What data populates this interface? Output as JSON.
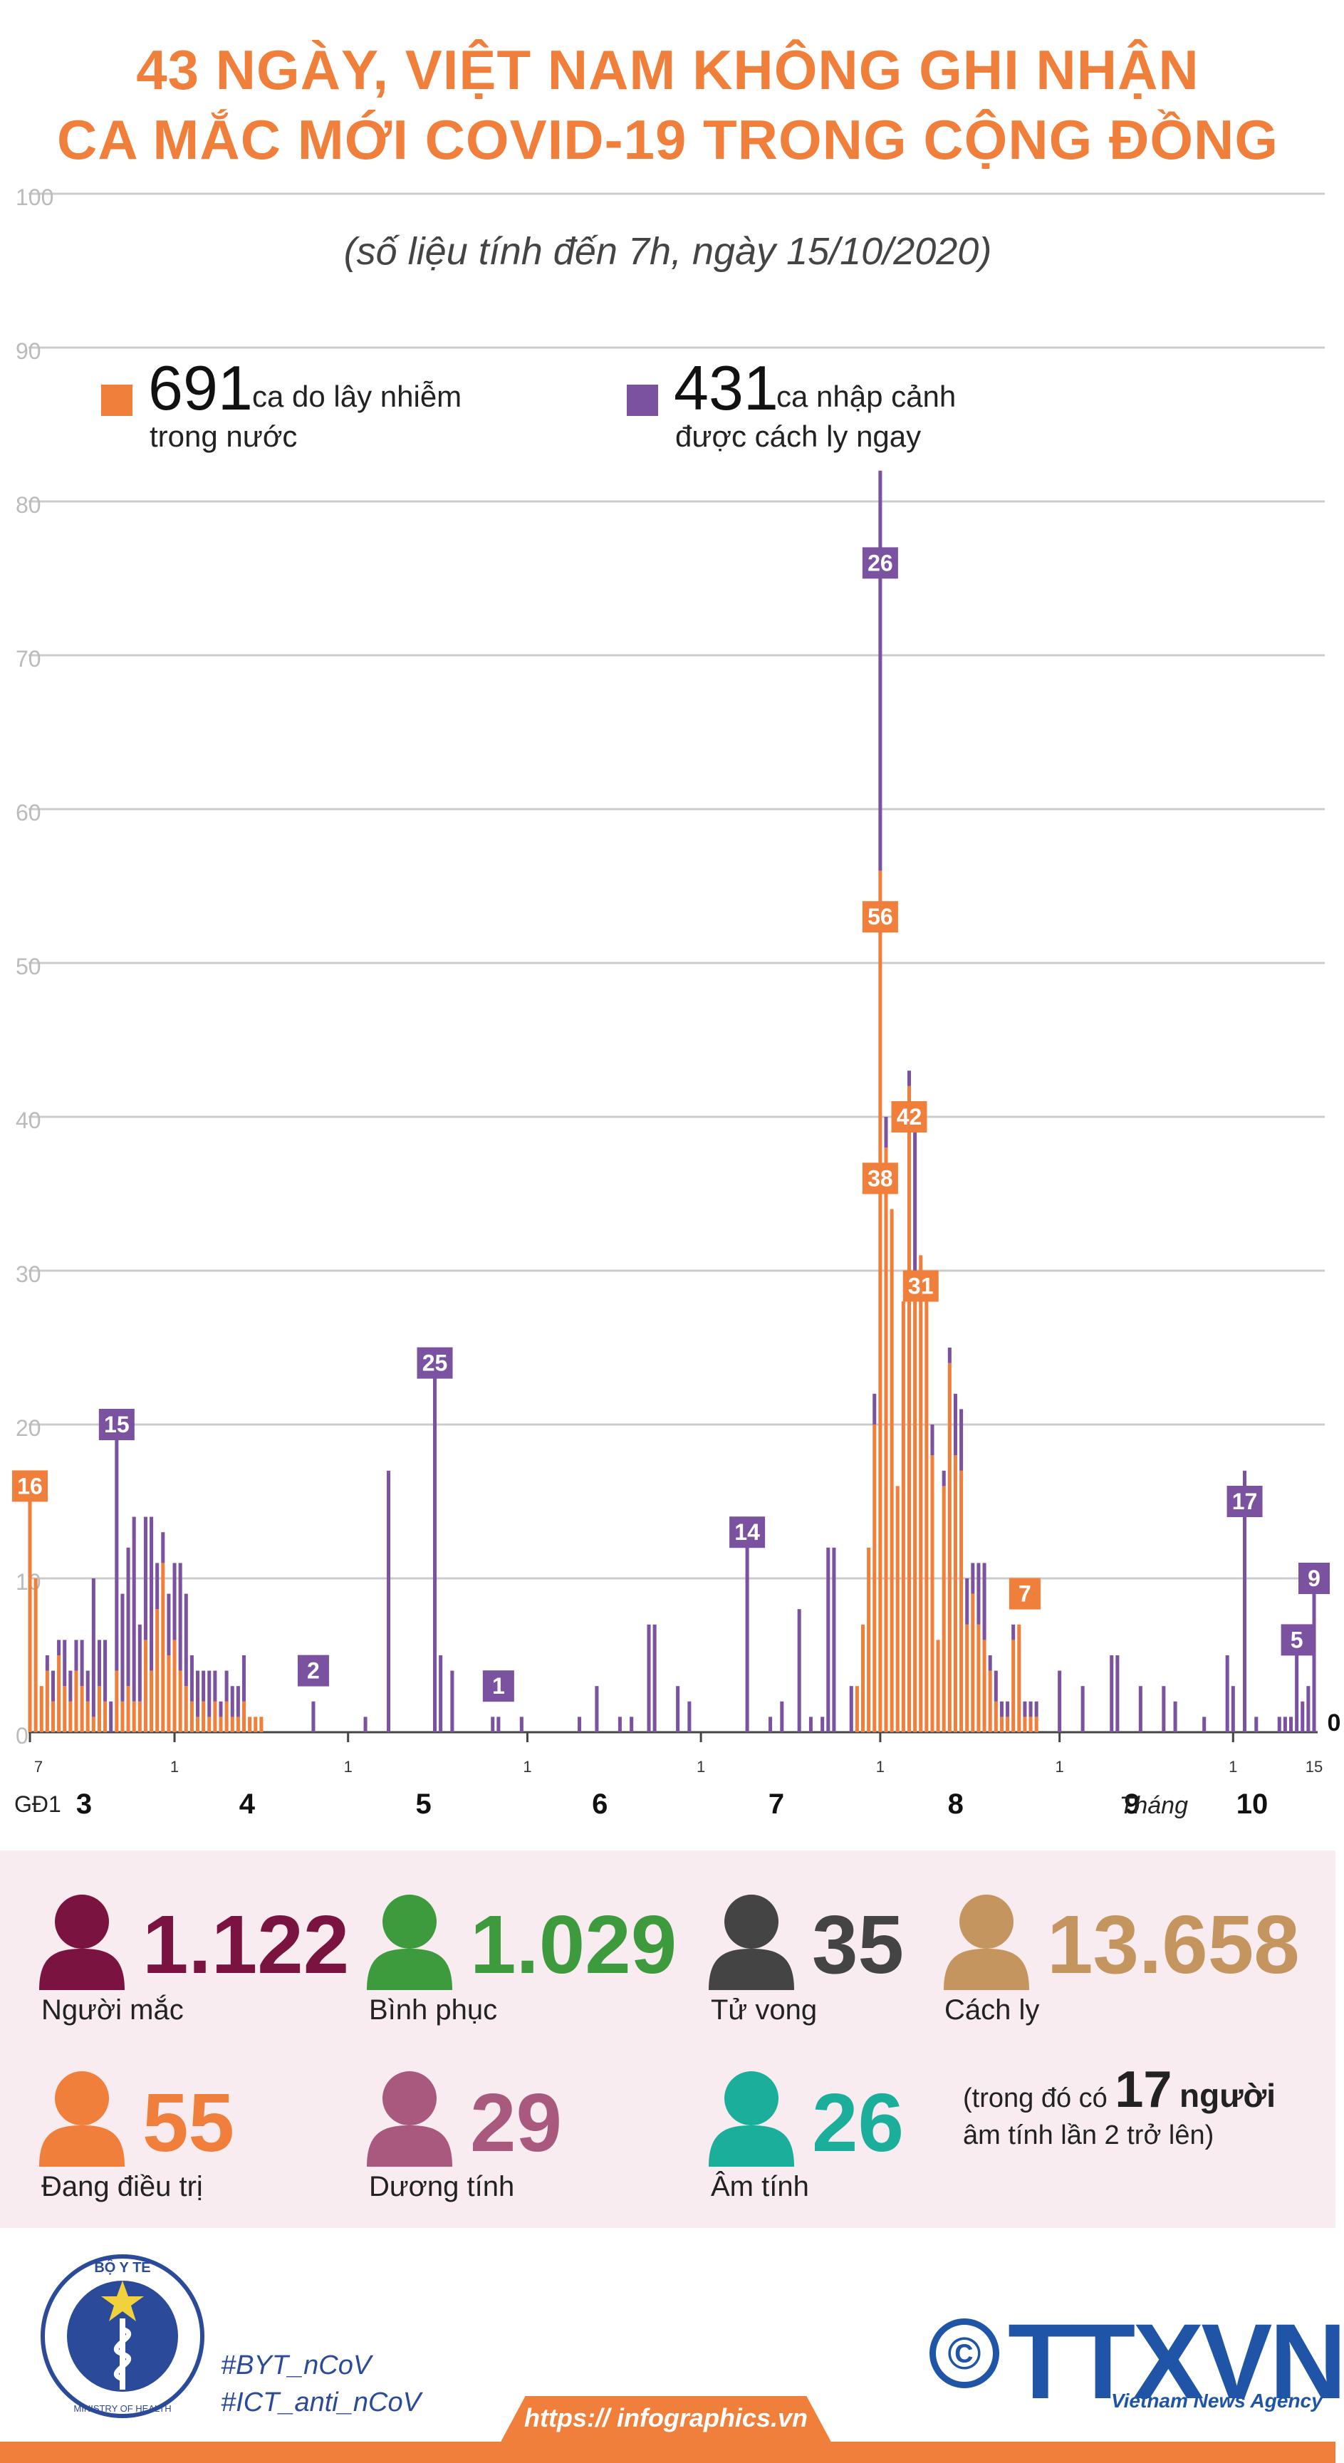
{
  "title_line1": "43 NGÀY, VIỆT NAM KHÔNG GHI NHẬN",
  "title_line2": "CA MẮC MỚI COVID-19 TRONG CỘNG ĐỒNG",
  "subtitle": "(số liệu tính đến 7h, ngày 15/10/2020)",
  "legend": {
    "domestic": {
      "number": "691",
      "text1": "ca do lây nhiễm",
      "text2": "trong nước",
      "color": "#f07f3c"
    },
    "imported": {
      "number": "431",
      "text1": "ca nhập cảnh",
      "text2": "được cách ly ngay",
      "color": "#7a52a0"
    }
  },
  "chart_data": {
    "type": "bar",
    "stacked": true,
    "ylim": [
      0,
      100
    ],
    "yticks": [
      "0",
      "10",
      "20",
      "30",
      "40",
      "50",
      "60",
      "70",
      "80",
      "90",
      "100"
    ],
    "grid": true,
    "series": [
      {
        "name": "ca do lây nhiễm trong nước",
        "color": "#f07f3c"
      },
      {
        "name": "ca nhập cảnh được cách ly ngay",
        "color": "#7a52a0"
      }
    ],
    "period_label": "GĐ1",
    "month_suffix_label": "Tháng",
    "months": [
      {
        "label": "3",
        "start_day": 0,
        "tick": "7"
      },
      {
        "label": "4",
        "start_day": 25,
        "tick": "1"
      },
      {
        "label": "5",
        "start_day": 55,
        "tick": "1"
      },
      {
        "label": "6",
        "start_day": 86,
        "tick": "1"
      },
      {
        "label": "7",
        "start_day": 116,
        "tick": "1"
      },
      {
        "label": "8",
        "start_day": 147,
        "tick": "1"
      },
      {
        "label": "9",
        "start_day": 178,
        "tick": "1"
      },
      {
        "label": "10",
        "start_day": 208,
        "tick": "1"
      }
    ],
    "end_tick": {
      "day": 222,
      "label": "15"
    },
    "x_day_count": 223,
    "days": [
      {
        "d": 0,
        "dom": 16,
        "imp": 0
      },
      {
        "d": 1,
        "dom": 10,
        "imp": 0
      },
      {
        "d": 2,
        "dom": 3,
        "imp": 0
      },
      {
        "d": 3,
        "dom": 4,
        "imp": 1
      },
      {
        "d": 4,
        "dom": 2,
        "imp": 2
      },
      {
        "d": 5,
        "dom": 5,
        "imp": 1
      },
      {
        "d": 6,
        "dom": 3,
        "imp": 3
      },
      {
        "d": 7,
        "dom": 2,
        "imp": 2
      },
      {
        "d": 8,
        "dom": 4,
        "imp": 2
      },
      {
        "d": 9,
        "dom": 3,
        "imp": 3
      },
      {
        "d": 10,
        "dom": 2,
        "imp": 2
      },
      {
        "d": 11,
        "dom": 1,
        "imp": 9
      },
      {
        "d": 12,
        "dom": 3,
        "imp": 3
      },
      {
        "d": 13,
        "dom": 2,
        "imp": 4
      },
      {
        "d": 14,
        "dom": 0,
        "imp": 2
      },
      {
        "d": 15,
        "dom": 4,
        "imp": 15
      },
      {
        "d": 16,
        "dom": 2,
        "imp": 7
      },
      {
        "d": 17,
        "dom": 3,
        "imp": 9
      },
      {
        "d": 18,
        "dom": 2,
        "imp": 12
      },
      {
        "d": 19,
        "dom": 2,
        "imp": 5
      },
      {
        "d": 20,
        "dom": 6,
        "imp": 8
      },
      {
        "d": 21,
        "dom": 4,
        "imp": 10
      },
      {
        "d": 22,
        "dom": 8,
        "imp": 3
      },
      {
        "d": 23,
        "dom": 11,
        "imp": 2
      },
      {
        "d": 24,
        "dom": 5,
        "imp": 4
      },
      {
        "d": 25,
        "dom": 6,
        "imp": 5
      },
      {
        "d": 26,
        "dom": 4,
        "imp": 7
      },
      {
        "d": 27,
        "dom": 3,
        "imp": 6
      },
      {
        "d": 28,
        "dom": 2,
        "imp": 3
      },
      {
        "d": 29,
        "dom": 1,
        "imp": 3
      },
      {
        "d": 30,
        "dom": 2,
        "imp": 2
      },
      {
        "d": 31,
        "dom": 1,
        "imp": 3
      },
      {
        "d": 32,
        "dom": 2,
        "imp": 2
      },
      {
        "d": 33,
        "dom": 1,
        "imp": 1
      },
      {
        "d": 34,
        "dom": 2,
        "imp": 2
      },
      {
        "d": 35,
        "dom": 1,
        "imp": 2
      },
      {
        "d": 36,
        "dom": 1,
        "imp": 2
      },
      {
        "d": 37,
        "dom": 2,
        "imp": 3
      },
      {
        "d": 38,
        "dom": 1,
        "imp": 0
      },
      {
        "d": 39,
        "dom": 1,
        "imp": 0
      },
      {
        "d": 40,
        "dom": 1,
        "imp": 0
      },
      {
        "d": 49,
        "dom": 0,
        "imp": 2
      },
      {
        "d": 58,
        "dom": 0,
        "imp": 1
      },
      {
        "d": 62,
        "dom": 0,
        "imp": 17
      },
      {
        "d": 70,
        "dom": 0,
        "imp": 25
      },
      {
        "d": 71,
        "dom": 0,
        "imp": 5
      },
      {
        "d": 73,
        "dom": 0,
        "imp": 4
      },
      {
        "d": 80,
        "dom": 0,
        "imp": 1
      },
      {
        "d": 81,
        "dom": 0,
        "imp": 1
      },
      {
        "d": 85,
        "dom": 0,
        "imp": 1
      },
      {
        "d": 95,
        "dom": 0,
        "imp": 1
      },
      {
        "d": 98,
        "dom": 0,
        "imp": 3
      },
      {
        "d": 102,
        "dom": 0,
        "imp": 1
      },
      {
        "d": 104,
        "dom": 0,
        "imp": 1
      },
      {
        "d": 107,
        "dom": 0,
        "imp": 7
      },
      {
        "d": 108,
        "dom": 0,
        "imp": 7
      },
      {
        "d": 112,
        "dom": 0,
        "imp": 3
      },
      {
        "d": 114,
        "dom": 0,
        "imp": 2
      },
      {
        "d": 124,
        "dom": 0,
        "imp": 14
      },
      {
        "d": 128,
        "dom": 0,
        "imp": 1
      },
      {
        "d": 130,
        "dom": 0,
        "imp": 2
      },
      {
        "d": 133,
        "dom": 0,
        "imp": 8
      },
      {
        "d": 135,
        "dom": 0,
        "imp": 1
      },
      {
        "d": 137,
        "dom": 0,
        "imp": 1
      },
      {
        "d": 138,
        "dom": 0,
        "imp": 12
      },
      {
        "d": 139,
        "dom": 0,
        "imp": 12
      },
      {
        "d": 142,
        "dom": 0,
        "imp": 3
      },
      {
        "d": 143,
        "dom": 3,
        "imp": 0
      },
      {
        "d": 144,
        "dom": 7,
        "imp": 0
      },
      {
        "d": 145,
        "dom": 12,
        "imp": 0
      },
      {
        "d": 146,
        "dom": 20,
        "imp": 2
      },
      {
        "d": 147,
        "dom": 56,
        "imp": 26
      },
      {
        "d": 148,
        "dom": 38,
        "imp": 2
      },
      {
        "d": 149,
        "dom": 34,
        "imp": 0
      },
      {
        "d": 150,
        "dom": 16,
        "imp": 0
      },
      {
        "d": 151,
        "dom": 28,
        "imp": 0
      },
      {
        "d": 152,
        "dom": 42,
        "imp": 1
      },
      {
        "d": 153,
        "dom": 30,
        "imp": 10
      },
      {
        "d": 154,
        "dom": 31,
        "imp": 0
      },
      {
        "d": 155,
        "dom": 29,
        "imp": 0
      },
      {
        "d": 156,
        "dom": 18,
        "imp": 2
      },
      {
        "d": 157,
        "dom": 6,
        "imp": 0
      },
      {
        "d": 158,
        "dom": 16,
        "imp": 1
      },
      {
        "d": 159,
        "dom": 24,
        "imp": 1
      },
      {
        "d": 160,
        "dom": 18,
        "imp": 4
      },
      {
        "d": 161,
        "dom": 17,
        "imp": 4
      },
      {
        "d": 162,
        "dom": 7,
        "imp": 3
      },
      {
        "d": 163,
        "dom": 9,
        "imp": 2
      },
      {
        "d": 164,
        "dom": 7,
        "imp": 4
      },
      {
        "d": 165,
        "dom": 6,
        "imp": 5
      },
      {
        "d": 166,
        "dom": 4,
        "imp": 1
      },
      {
        "d": 167,
        "dom": 2,
        "imp": 2
      },
      {
        "d": 168,
        "dom": 1,
        "imp": 1
      },
      {
        "d": 169,
        "dom": 1,
        "imp": 1
      },
      {
        "d": 170,
        "dom": 6,
        "imp": 1
      },
      {
        "d": 171,
        "dom": 7,
        "imp": 0
      },
      {
        "d": 172,
        "dom": 1,
        "imp": 1
      },
      {
        "d": 173,
        "dom": 1,
        "imp": 1
      },
      {
        "d": 174,
        "dom": 1,
        "imp": 1
      },
      {
        "d": 178,
        "dom": 0,
        "imp": 4
      },
      {
        "d": 182,
        "dom": 0,
        "imp": 3
      },
      {
        "d": 187,
        "dom": 0,
        "imp": 5
      },
      {
        "d": 188,
        "dom": 0,
        "imp": 5
      },
      {
        "d": 192,
        "dom": 0,
        "imp": 3
      },
      {
        "d": 196,
        "dom": 0,
        "imp": 3
      },
      {
        "d": 198,
        "dom": 0,
        "imp": 2
      },
      {
        "d": 203,
        "dom": 0,
        "imp": 1
      },
      {
        "d": 207,
        "dom": 0,
        "imp": 5
      },
      {
        "d": 208,
        "dom": 0,
        "imp": 3
      },
      {
        "d": 210,
        "dom": 0,
        "imp": 17
      },
      {
        "d": 212,
        "dom": 0,
        "imp": 1
      },
      {
        "d": 216,
        "dom": 0,
        "imp": 1
      },
      {
        "d": 217,
        "dom": 0,
        "imp": 1
      },
      {
        "d": 218,
        "dom": 0,
        "imp": 1
      },
      {
        "d": 219,
        "dom": 0,
        "imp": 5
      },
      {
        "d": 220,
        "dom": 0,
        "imp": 2
      },
      {
        "d": 221,
        "dom": 0,
        "imp": 3
      },
      {
        "d": 222,
        "dom": 0,
        "imp": 9
      }
    ],
    "annotations": [
      {
        "day": 0,
        "value": 16,
        "label": "16",
        "color": "#f07f3c"
      },
      {
        "day": 15,
        "value": 20,
        "label": "15",
        "color": "#7a52a0"
      },
      {
        "day": 49,
        "value": 4,
        "label": "2",
        "color": "#7a52a0"
      },
      {
        "day": 70,
        "value": 24,
        "label": "25",
        "color": "#7a52a0"
      },
      {
        "day": 81,
        "value": 3,
        "label": "1",
        "color": "#7a52a0"
      },
      {
        "day": 124,
        "value": 13,
        "label": "14",
        "color": "#7a52a0"
      },
      {
        "day": 147,
        "value": 76,
        "label": "26",
        "color": "#7a52a0"
      },
      {
        "day": 147,
        "value": 53,
        "label": "56",
        "color": "#f07f3c"
      },
      {
        "day": 147,
        "value": 36,
        "label": "38",
        "color": "#f07f3c"
      },
      {
        "day": 152,
        "value": 40,
        "label": "42",
        "color": "#f07f3c"
      },
      {
        "day": 154,
        "value": 29,
        "label": "31",
        "color": "#f07f3c"
      },
      {
        "day": 172,
        "value": 9,
        "label": "7",
        "color": "#f07f3c"
      },
      {
        "day": 210,
        "value": 15,
        "label": "17",
        "color": "#7a52a0"
      },
      {
        "day": 219,
        "value": 6,
        "label": "5",
        "color": "#7a52a0"
      },
      {
        "day": 222,
        "value": 10,
        "label": "9",
        "color": "#7a52a0"
      }
    ],
    "end_value_label": "0"
  },
  "stats": [
    {
      "value": "1.122",
      "label": "Người mắc",
      "color": "#7a1340"
    },
    {
      "value": "1.029",
      "label": "Bình phục",
      "color": "#3e9b3d"
    },
    {
      "value": "35",
      "label": "Tử vong",
      "color": "#444444"
    },
    {
      "value": "13.658",
      "label": "Cách ly",
      "color": "#c4955e"
    },
    {
      "value": "55",
      "label": "Đang điều trị",
      "color": "#f07f3c"
    },
    {
      "value": "29",
      "label": "Dương tính",
      "color": "#a8597d"
    },
    {
      "value": "26",
      "label": "Âm tính",
      "color": "#1aae9b"
    }
  ],
  "note": {
    "line1_pre": "(trong đó có",
    "count": "17",
    "line1_post": "người",
    "line2": "âm tính lần 2 trở lên)"
  },
  "footer": {
    "ministry_name": "BỘ Y TẾ",
    "ministry_en": "MINISTRY OF HEALTH",
    "hashtag1": "#BYT_nCoV",
    "hashtag2": "#ICT_anti_nCoV",
    "url": "https:// infographics.vn",
    "agency": "TTXVN",
    "agency_en": "Vietnam News Agency",
    "copyright": "©"
  }
}
